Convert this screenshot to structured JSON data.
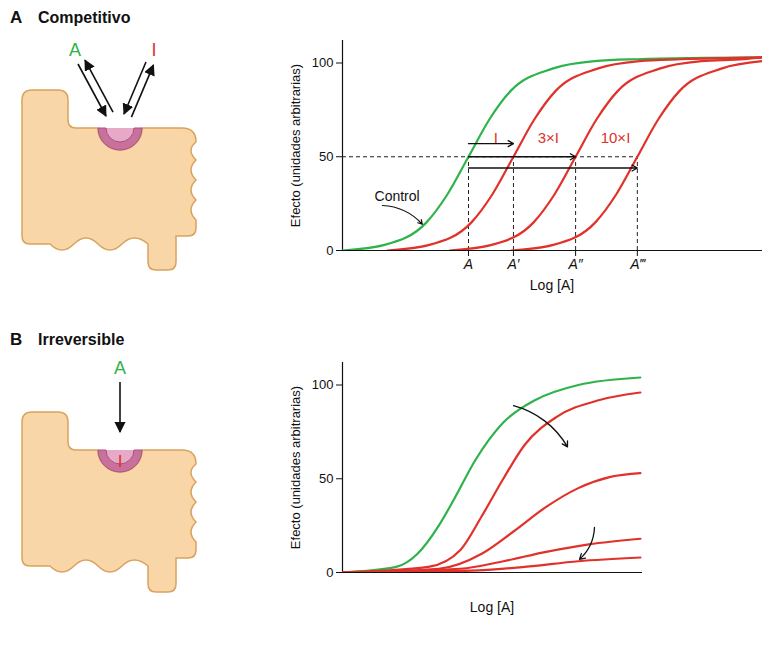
{
  "chart_data": [
    {
      "panel": "A",
      "title": "Competitivo",
      "type": "line",
      "diagram": {
        "ligand": "A",
        "competitor": "I"
      },
      "x_label": "Log [A]",
      "y_label": "Efecto (unidades arbitrarias)",
      "xlim": [
        0,
        10
      ],
      "ylim": [
        0,
        112
      ],
      "xticks": [
        {
          "value": 3,
          "label": "A"
        },
        {
          "value": 4.07,
          "label": "A′"
        },
        {
          "value": 5.55,
          "label": "A″"
        },
        {
          "value": 7.02,
          "label": "A‴"
        }
      ],
      "yticks": [
        0,
        50,
        100
      ],
      "dashed_level": 50,
      "series": [
        {
          "name": "Control",
          "color": "#2eb34b",
          "x": [
            0,
            1,
            2,
            2.5,
            3,
            3.5,
            4,
            5,
            6,
            7,
            10
          ],
          "values": [
            0,
            3,
            15,
            30,
            50,
            70,
            85,
            97,
            101,
            102,
            103
          ]
        },
        {
          "name": "I",
          "color": "#e0312b",
          "x": [
            1.07,
            2.07,
            3.07,
            3.57,
            4.07,
            4.57,
            5.07,
            6.07,
            7.07,
            8.07,
            10
          ],
          "values": [
            0,
            3,
            15,
            30,
            50,
            70,
            85,
            97,
            101,
            102,
            103
          ]
        },
        {
          "name": "3×I",
          "color": "#e0312b",
          "x": [
            2.55,
            3.55,
            4.55,
            5.05,
            5.55,
            6.05,
            6.55,
            7.55,
            8.55,
            9.55,
            10
          ],
          "values": [
            0,
            3,
            15,
            30,
            50,
            70,
            85,
            97,
            101,
            102,
            103
          ]
        },
        {
          "name": "10×I",
          "color": "#e0312b",
          "x": [
            4.02,
            5.02,
            6.02,
            6.52,
            7.02,
            7.52,
            8.02,
            9.02,
            10
          ],
          "values": [
            0,
            3,
            15,
            30,
            50,
            70,
            85,
            97,
            101
          ]
        }
      ],
      "arrows": [
        {
          "label": "I",
          "from": 3,
          "to": 4.07,
          "y": 57,
          "label_x": 3.65,
          "label_y": 60
        },
        {
          "label": "3×I",
          "from": 3,
          "to": 5.55,
          "y": 50,
          "label_x": 4.9,
          "label_y": 60
        },
        {
          "label": "10×I",
          "from": 3,
          "to": 7.02,
          "y": 44,
          "label_x": 6.5,
          "label_y": 60
        }
      ],
      "annotations": [
        {
          "text": "Control",
          "x": 1.3,
          "y": 29,
          "arrow_from": [
            0.95,
            24
          ],
          "arrow_to": [
            1.9,
            14
          ]
        }
      ]
    },
    {
      "panel": "B",
      "title": "Irreversible",
      "type": "line",
      "diagram": {
        "ligand": "A",
        "bound": "I"
      },
      "x_label": "Log [A]",
      "y_label": "Efecto (unidades arbitrarias)",
      "xlim": [
        0,
        10
      ],
      "ylim": [
        0,
        112
      ],
      "yticks": [
        0,
        50,
        100
      ],
      "tick_labels": "y",
      "series": [
        {
          "color": "#2eb34b",
          "x": [
            0,
            1.79,
            2.5,
            3.21,
            3.75,
            4.43,
            5.36,
            6.43,
            7.86,
            9.93
          ],
          "values": [
            0,
            3,
            10,
            25,
            40,
            60,
            80,
            92,
            100,
            104
          ]
        },
        {
          "color": "#e0312b",
          "x": [
            0,
            2.86,
            3.93,
            4.64,
            5.36,
            6.07,
            7.14,
            8.57,
            9.93
          ],
          "values": [
            0,
            3,
            12,
            30,
            50,
            68,
            83,
            92,
            96
          ]
        },
        {
          "color": "#e0312b",
          "x": [
            0,
            3.21,
            4.64,
            5.71,
            6.79,
            7.86,
            8.93,
            9.93
          ],
          "values": [
            0,
            2,
            10,
            22,
            35,
            45,
            51,
            53
          ]
        },
        {
          "color": "#e0312b",
          "x": [
            0,
            3.93,
            5.36,
            6.79,
            8.21,
            9.93
          ],
          "values": [
            0,
            2,
            6,
            11,
            15,
            18
          ]
        },
        {
          "color": "#e0312b",
          "x": [
            0,
            4.29,
            6.07,
            7.86,
            9.93
          ],
          "values": [
            0,
            1,
            3,
            6,
            8
          ]
        }
      ],
      "arrows": [
        {
          "x1": 5.7,
          "y1": 89,
          "x2": 7.5,
          "y2": 67
        },
        {
          "x1": 8.4,
          "y1": 24,
          "x2": 7.9,
          "y2": 7
        }
      ]
    }
  ]
}
